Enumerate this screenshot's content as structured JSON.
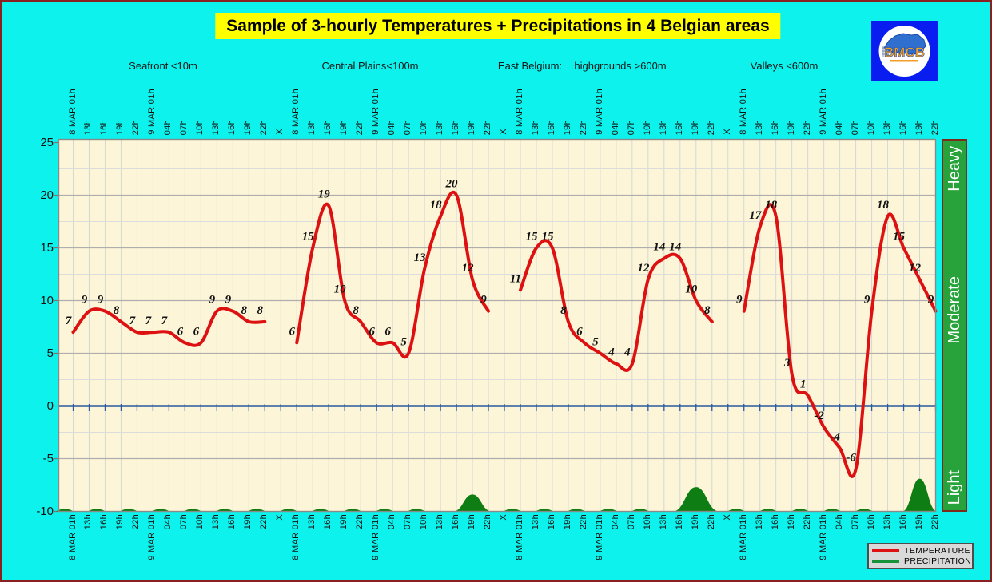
{
  "title": "Sample of 3-hourly Temperatures + Precipitations in 4 Belgian areas",
  "logo": {
    "text": "BMCB"
  },
  "chart_data": {
    "type": "line",
    "title": "Sample of 3-hourly Temperatures + Precipitations in 4 Belgian areas",
    "area_headers": [
      "Seafront <10m",
      "Central Plains<100m",
      "East Belgium:",
      "highgrounds >600m",
      "Valleys <600m"
    ],
    "time_labels": [
      "8 MAR 01h",
      "13h",
      "16h",
      "19h",
      "22h",
      "9 MAR 01h",
      "04h",
      "07h",
      "10h",
      "13h",
      "16h",
      "19h",
      "22h"
    ],
    "separator_label": "X",
    "groups": [
      {
        "name": "Seafront <10m",
        "temps": [
          7,
          9,
          9,
          8,
          7,
          7,
          7,
          6,
          6,
          9,
          9,
          8,
          8
        ]
      },
      {
        "name": "Central Plains<100m",
        "temps": [
          6,
          15,
          19,
          10,
          8,
          6,
          6,
          5,
          13,
          18,
          20,
          12,
          9
        ]
      },
      {
        "name": "East Belgium: highgrounds >600m",
        "temps": [
          11,
          15,
          15,
          8,
          6,
          5,
          4,
          4,
          12,
          14,
          14,
          10,
          8
        ]
      },
      {
        "name": "Valleys <600m",
        "temps": [
          9,
          17,
          18,
          3,
          1,
          -2,
          -4,
          -6,
          9,
          18,
          15,
          12,
          9
        ]
      }
    ],
    "y_axis": {
      "min": -10,
      "max": 25,
      "labels": [
        25,
        20,
        15,
        10,
        5,
        0,
        -5,
        -10
      ],
      "minor_step": 2.5,
      "major_step": 5
    },
    "zero_line_value": 0,
    "right_scale_labels": [
      "Heavy",
      "Moderate",
      "Light"
    ],
    "legend": [
      {
        "label": "TEMPERATURE",
        "color": "#dd1111"
      },
      {
        "label": "PRECIPITATION",
        "color": "#169239"
      }
    ],
    "precipitation": {
      "baseline": -10,
      "bumps": [
        {
          "tick": 25,
          "peak": 1.6,
          "width_ticks": 2.4
        },
        {
          "tick": 39,
          "peak": 2.3,
          "width_ticks": 2.9
        },
        {
          "tick": 53,
          "peak": 3.1,
          "width_ticks": 2.2
        }
      ]
    },
    "colors": {
      "temperature": "#dd1111",
      "precipitation_fill": "#0e7d13",
      "zero_line": "#2a5a9f",
      "plot_bg": "#fdf5d7",
      "grid_vertical": "#d6d6d6",
      "grid_minor": "#dcdcdc",
      "grid_major": "#aeaeae",
      "page_bg": "#0df2ec",
      "title_bg": "#ffff00",
      "scale_bar": "#28a23a"
    }
  }
}
